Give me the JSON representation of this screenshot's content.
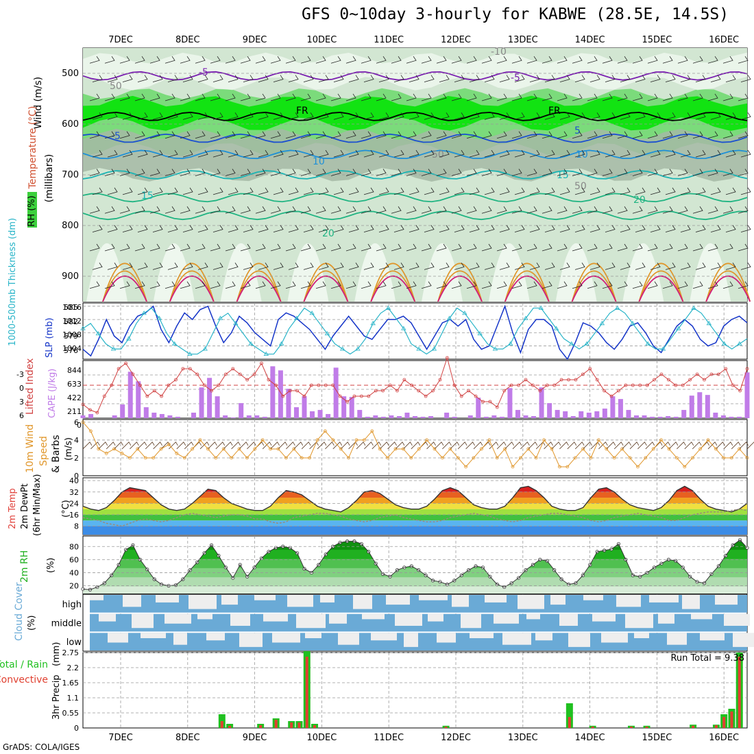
{
  "title": "GFS 0~10day 3-hourly for KABWE (28.5E, 14.5S)",
  "footer": "GrADS: COLA/IGES",
  "colors": {
    "rh": [
      "#eef7ee",
      "#d2e6d2",
      "#b8cab8",
      "#a6b8a6",
      "#6cd86c",
      "#00e400",
      "#00b400"
    ],
    "temp_red": "#e0403a",
    "dewpt_grey": "#9a8a7a",
    "slp": "#1434c8",
    "thickness": "#28b4c8",
    "li": "#d04040",
    "cape": "#c07ce8",
    "wind10": "#e0962a",
    "rh2m": "#20b020",
    "cloud": "#6aaad6",
    "precip_total": "#20c020",
    "precip_conv": "#e04030"
  },
  "chart_data": {
    "type": "meteogram",
    "x_tick_labels": [
      "7DEC",
      "8DEC",
      "9DEC",
      "10DEC",
      "11DEC",
      "12DEC",
      "13DEC",
      "14DEC",
      "15DEC",
      "16DEC"
    ],
    "panels": [
      {
        "id": "upper_air",
        "ylabel": "Wind (m/s)",
        "ylabel2": "Temperature (°C)",
        "ylabel3": "(millibars)",
        "legend": "RH (%)",
        "yticks": [
          500,
          600,
          700,
          800,
          900
        ],
        "contour_labels": [
          "-5",
          "-5",
          "50",
          "FR",
          "FR",
          "-5",
          "5",
          "10",
          "10",
          "15",
          "15",
          "20",
          "20",
          "50",
          "50",
          "-10"
        ]
      },
      {
        "id": "slp_thickness",
        "ylabel": "SLP (mb)",
        "ylabel2": "1000-500mb Thickness (dm)",
        "yticks_left": [
          "585",
          "582",
          "579",
          "576"
        ],
        "yticks_right": [
          "1016",
          "1012",
          "1008",
          "1004"
        ],
        "slp": [
          1003,
          1001,
          1006,
          1012,
          1007,
          1005,
          1010,
          1013,
          1014,
          1016,
          1009,
          1005,
          1010,
          1014,
          1012,
          1015,
          1016,
          1010,
          1005,
          1008,
          1013,
          1011,
          1008,
          1006,
          1004,
          1012,
          1014,
          1013,
          1011,
          1009,
          1006,
          1003,
          1007,
          1010,
          1013,
          1010,
          1007,
          1006,
          1009,
          1012,
          1012,
          1013,
          1011,
          1007,
          1003,
          1007,
          1011,
          1012,
          1010,
          1012,
          1006,
          1003,
          1004,
          1010,
          1016,
          1008,
          1002,
          1009,
          1012,
          1012,
          1010,
          1003,
          1000,
          1005,
          1011,
          1010,
          1008,
          1005,
          1003,
          1006,
          1010,
          1011,
          1008,
          1004,
          1002,
          1006,
          1010,
          1012,
          1010,
          1006,
          1004,
          1005,
          1010,
          1012,
          1013,
          1011
        ],
        "thickness": [
          581,
          582,
          580,
          578,
          577,
          577,
          579,
          582,
          584,
          585,
          583,
          580,
          578,
          577,
          576,
          576,
          577,
          580,
          583,
          584,
          582,
          580,
          578,
          577,
          576,
          576,
          578,
          581,
          583,
          585,
          584,
          582,
          580,
          578,
          577,
          576,
          577,
          579,
          582,
          584,
          585,
          583,
          581,
          578,
          577,
          576,
          577,
          580,
          583,
          585,
          584,
          582,
          580,
          578,
          577,
          577,
          578,
          581,
          583,
          585,
          585,
          583,
          581,
          579,
          578,
          577,
          578,
          580,
          582,
          584,
          585,
          584,
          582,
          580,
          578,
          577,
          577,
          579,
          581,
          583,
          585,
          584,
          582,
          580,
          578,
          577,
          578,
          579
        ]
      },
      {
        "id": "li_cape",
        "ylabel": "Lifted Index",
        "ylabel2": "CAPE (J/kg)",
        "yticks_left": [
          "-3",
          "0",
          "3",
          "6"
        ],
        "yticks_right": [
          "844",
          "633",
          "422",
          "211",
          "0"
        ],
        "cape": [
          40,
          60,
          0,
          0,
          40,
          200,
          680,
          540,
          160,
          80,
          60,
          40,
          20,
          0,
          80,
          450,
          590,
          320,
          40,
          10,
          220,
          40,
          40,
          20,
          760,
          700,
          430,
          160,
          320,
          100,
          120,
          60,
          740,
          320,
          310,
          120,
          20,
          40,
          20,
          40,
          30,
          80,
          30,
          20,
          30,
          0,
          80,
          20,
          0,
          40,
          300,
          20,
          40,
          20,
          440,
          120,
          40,
          30,
          450,
          220,
          120,
          100,
          30,
          100,
          80,
          100,
          140,
          320,
          280,
          120,
          40,
          40,
          20,
          20,
          30,
          20,
          120,
          330,
          380,
          340,
          80,
          40,
          20,
          20,
          670
        ],
        "li": [
          3.5,
          4.5,
          5,
          2,
          0,
          -3,
          -4,
          -2,
          0,
          2,
          1,
          2,
          0,
          -1,
          -3,
          -3,
          -2,
          0,
          1,
          0,
          -2,
          -3,
          -2,
          -1,
          -2,
          -4,
          -1,
          0,
          2,
          1,
          1,
          2,
          0,
          0,
          0,
          0,
          2,
          3,
          2,
          2,
          2,
          1,
          1,
          0,
          1,
          -1,
          0,
          1,
          2,
          1,
          -1,
          -5,
          0,
          2,
          1,
          2,
          3,
          3,
          4,
          1,
          0,
          0,
          -1,
          0,
          1,
          0,
          0,
          -1,
          -1,
          -1,
          -2,
          -3,
          -1,
          1,
          2,
          1,
          0,
          0,
          0,
          0,
          -1,
          -2,
          -1,
          0,
          0,
          -1,
          -2,
          -1,
          -2,
          -2,
          -3,
          0,
          1,
          -3
        ]
      },
      {
        "id": "wind10m",
        "ylabel": "10m Wind",
        "ylabel2": "Speed",
        "ylabel3": "& Barbs",
        "yunit": "(m/s)",
        "yticks": [
          "6",
          "4",
          "2",
          "0"
        ],
        "speed": [
          6,
          5,
          3,
          2.5,
          3,
          2.5,
          2,
          3,
          2,
          2,
          3,
          3.5,
          2.5,
          2,
          3,
          4,
          3,
          2,
          3,
          2,
          3,
          2,
          3,
          4,
          3,
          3,
          2,
          3,
          2,
          2,
          4,
          5,
          4,
          3,
          2,
          4,
          4,
          5,
          3,
          2,
          3,
          3,
          2,
          3,
          4,
          3,
          2,
          3,
          2,
          1,
          2,
          3,
          4,
          2,
          3,
          1,
          2,
          3,
          2,
          4,
          3,
          1,
          1,
          2,
          3,
          2,
          4,
          3,
          2,
          3,
          2,
          1,
          2,
          3,
          4,
          3,
          2,
          1,
          2,
          3,
          4,
          3,
          2,
          2,
          3,
          2
        ]
      },
      {
        "id": "temp2m",
        "ylabel": "2m Temp",
        "ylabel2": "2m DewPt",
        "ylabel3": "(6hr Min/Max)",
        "yunit": "(°C)",
        "yticks": [
          "40",
          "32",
          "24",
          "16",
          "8"
        ],
        "temp": [
          22,
          20,
          19,
          21,
          26,
          32,
          35,
          34,
          33,
          28,
          23,
          20,
          19,
          20,
          24,
          29,
          34,
          33,
          28,
          24,
          22,
          20,
          19,
          19,
          22,
          28,
          33,
          32,
          30,
          26,
          22,
          20,
          19,
          18,
          21,
          26,
          32,
          33,
          31,
          27,
          23,
          21,
          20,
          20,
          22,
          27,
          33,
          35,
          33,
          28,
          23,
          21,
          20,
          20,
          22,
          28,
          35,
          36,
          33,
          28,
          22,
          20,
          19,
          19,
          21,
          28,
          34,
          35,
          32,
          27,
          23,
          21,
          20,
          19,
          21,
          26,
          33,
          36,
          33,
          27,
          22,
          20,
          19,
          18,
          20,
          24
        ],
        "dewpt": [
          14,
          13,
          12,
          10,
          9,
          8,
          10,
          12,
          13,
          12,
          11,
          12,
          14,
          16,
          17,
          16,
          15,
          14,
          15,
          16,
          16,
          15,
          13,
          13,
          11,
          10,
          11,
          14,
          15,
          16,
          17,
          17,
          16,
          15,
          13,
          12,
          11,
          12,
          14,
          15,
          16,
          14,
          13,
          12,
          11,
          11,
          12,
          14,
          15,
          16,
          17,
          16,
          15,
          13,
          12,
          11,
          12,
          14,
          15,
          16,
          17,
          17,
          16,
          15,
          14,
          12,
          11,
          12,
          14,
          15,
          16,
          17,
          16,
          15,
          14,
          12,
          12,
          14,
          16,
          17,
          18,
          18,
          18,
          19,
          20,
          19
        ]
      },
      {
        "id": "rh2m",
        "ylabel": "2m RH",
        "yunit": "(%)",
        "yticks": [
          "80",
          "60",
          "40",
          "20"
        ],
        "rh": [
          15,
          14,
          18,
          24,
          36,
          52,
          75,
          82,
          60,
          45,
          30,
          22,
          20,
          21,
          30,
          44,
          56,
          70,
          82,
          66,
          48,
          32,
          52,
          34,
          48,
          62,
          72,
          78,
          80,
          78,
          70,
          46,
          40,
          52,
          68,
          80,
          86,
          88,
          88,
          84,
          72,
          54,
          38,
          34,
          44,
          48,
          50,
          44,
          36,
          28,
          26,
          22,
          28,
          36,
          44,
          50,
          48,
          34,
          22,
          18,
          24,
          32,
          44,
          52,
          60,
          58,
          44,
          30,
          22,
          24,
          36,
          52,
          72,
          74,
          76,
          84,
          60,
          36,
          34,
          40,
          48,
          54,
          60,
          58,
          48,
          34,
          26,
          24,
          38,
          50,
          66,
          82,
          90,
          78
        ]
      },
      {
        "id": "cloud",
        "ylabel": "Cloud Cover",
        "yunit": "(%)",
        "levels": [
          "high",
          "middle",
          "low"
        ]
      },
      {
        "id": "precip",
        "ylabel": "3hr Precip",
        "ylabel2": "(mm)",
        "legend_total": "Total / Rain",
        "legend_conv": "Convective",
        "yticks": [
          "2.75",
          "2.2",
          "1.65",
          "1.1",
          "0.55",
          "0"
        ],
        "run_total": "Run Total = 9.38",
        "total": [
          0,
          0,
          0,
          0,
          0,
          0,
          0,
          0,
          0,
          0,
          0,
          0,
          0,
          0,
          0,
          0,
          0,
          0,
          0.5,
          0.15,
          0,
          0,
          0,
          0.15,
          0,
          0.35,
          0,
          0.25,
          0.25,
          2.8,
          0.15,
          0,
          0,
          0,
          0,
          0,
          0,
          0,
          0,
          0,
          0,
          0,
          0,
          0,
          0,
          0,
          0,
          0.08,
          0,
          0,
          0,
          0,
          0,
          0,
          0,
          0,
          0,
          0,
          0,
          0,
          0,
          0,
          0,
          0.9,
          0,
          0,
          0.08,
          0,
          0,
          0,
          0,
          0.08,
          0,
          0.08,
          0,
          0,
          0,
          0,
          0,
          0.12,
          0,
          0,
          0.12,
          0.5,
          0.7,
          2.75,
          0
        ],
        "conv": [
          0,
          0,
          0,
          0,
          0,
          0,
          0,
          0,
          0,
          0,
          0,
          0,
          0,
          0,
          0,
          0,
          0,
          0,
          0.25,
          0.08,
          0,
          0,
          0,
          0.1,
          0,
          0.3,
          0,
          0.2,
          0.2,
          2.6,
          0.1,
          0,
          0,
          0,
          0,
          0,
          0,
          0,
          0,
          0,
          0,
          0,
          0,
          0,
          0,
          0,
          0,
          0.05,
          0,
          0,
          0,
          0,
          0,
          0,
          0,
          0,
          0,
          0,
          0,
          0,
          0,
          0,
          0,
          0.4,
          0,
          0,
          0.05,
          0,
          0,
          0,
          0,
          0.05,
          0,
          0.05,
          0,
          0,
          0,
          0,
          0,
          0.08,
          0,
          0,
          0.1,
          0.4,
          0.6,
          2.6,
          0
        ]
      }
    ]
  }
}
